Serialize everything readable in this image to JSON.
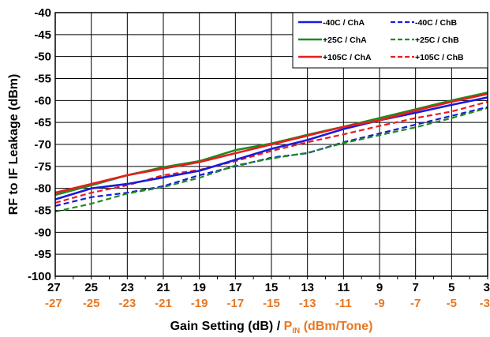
{
  "colors": {
    "ChA_-40C": "#1a1adc",
    "ChA_+25C": "#1e8c1e",
    "ChA_+105C": "#e61e1e",
    "secondary_axis": "#e87722",
    "grid": "#000000"
  },
  "chart_data": {
    "type": "line",
    "title": "",
    "ylabel": "RF to IF Leakage (dBm)",
    "xlabel": "Gain Setting (dB) / ",
    "xlabel_secondary": {
      "prefix": "P",
      "subscript": "IN",
      "suffix": " (dBm/Tone)"
    },
    "x_ticks": [
      27,
      25,
      23,
      21,
      19,
      17,
      15,
      13,
      11,
      9,
      7,
      5,
      3
    ],
    "x_ticks_secondary": [
      -27,
      -25,
      -23,
      -21,
      -19,
      -17,
      -15,
      -13,
      -11,
      -9,
      -7,
      -5,
      -3
    ],
    "xlim": [
      27,
      3
    ],
    "ylim": [
      -100,
      -40
    ],
    "y_ticks": [
      -40,
      -45,
      -50,
      -55,
      -60,
      -65,
      -70,
      -75,
      -80,
      -85,
      -90,
      -95,
      -100
    ],
    "grid": true,
    "legend_position": "top-right",
    "x": [
      27,
      25,
      23,
      21,
      19,
      17,
      15,
      13,
      11,
      9,
      7,
      5,
      3
    ],
    "series": [
      {
        "name": "-40C / ChA",
        "color": "#1a1adc",
        "dash": "solid",
        "values": [
          -82.5,
          -80.0,
          -79.0,
          -77.5,
          -76.0,
          -73.5,
          -71.0,
          -69.0,
          -66.5,
          -64.5,
          -62.8,
          -61.0,
          -59.3
        ]
      },
      {
        "name": "-40C / ChB",
        "color": "#1a1adc",
        "dash": "dashed",
        "values": [
          -84.0,
          -82.0,
          -81.0,
          -79.5,
          -77.0,
          -75.0,
          -73.0,
          -72.0,
          -69.5,
          -67.5,
          -65.5,
          -63.5,
          -61.5
        ]
      },
      {
        "name": "+25C / ChA",
        "color": "#1e8c1e",
        "dash": "solid",
        "values": [
          -81.5,
          -79.3,
          -77.0,
          -75.2,
          -73.8,
          -71.3,
          -69.8,
          -67.8,
          -66.0,
          -64.0,
          -62.0,
          -60.0,
          -58.2
        ]
      },
      {
        "name": "+25C / ChB",
        "color": "#1e8c1e",
        "dash": "dashed",
        "values": [
          -85.3,
          -83.5,
          -81.2,
          -79.7,
          -77.6,
          -74.8,
          -73.2,
          -71.9,
          -69.7,
          -67.9,
          -66.1,
          -64.0,
          -61.7
        ]
      },
      {
        "name": "+105C / ChA",
        "color": "#e61e1e",
        "dash": "solid",
        "values": [
          -81.0,
          -79.0,
          -77.0,
          -75.5,
          -74.0,
          -72.0,
          -70.0,
          -68.0,
          -66.0,
          -64.5,
          -62.3,
          -60.3,
          -58.5
        ]
      },
      {
        "name": "+105C / ChB",
        "color": "#e61e1e",
        "dash": "dashed",
        "values": [
          -83.3,
          -81.0,
          -79.3,
          -77.0,
          -75.8,
          -73.8,
          -71.5,
          -69.5,
          -67.7,
          -65.8,
          -64.0,
          -62.5,
          -60.3
        ]
      }
    ]
  }
}
